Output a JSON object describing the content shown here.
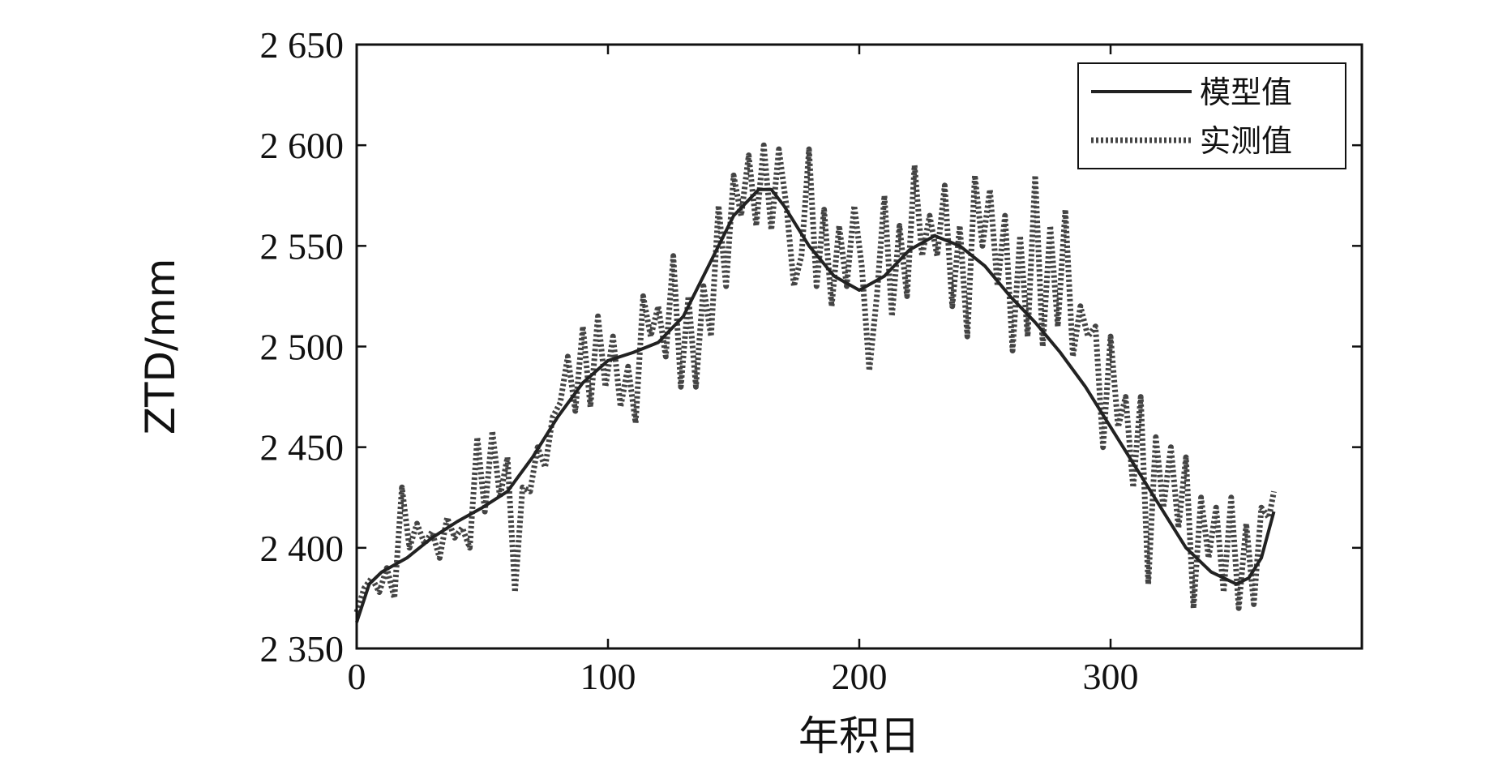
{
  "chart_data": {
    "type": "line",
    "title": "",
    "xlabel": "年积日",
    "ylabel": "ZTD/mm",
    "xlim": [
      0,
      400
    ],
    "ylim": [
      2350,
      2650
    ],
    "x_ticks": [
      0,
      100,
      200,
      300
    ],
    "x_tick_labels": [
      "0",
      "100",
      "200",
      "300"
    ],
    "y_ticks": [
      2350,
      2400,
      2450,
      2500,
      2550,
      2600,
      2650
    ],
    "y_tick_labels": [
      "2 350",
      "2 400",
      "2 450",
      "2 500",
      "2 550",
      "2 600",
      "2 650"
    ],
    "grid": false,
    "legend_position": "top-right",
    "series": [
      {
        "name": "模型值",
        "style": "solid",
        "color": "#222222",
        "x": [
          0,
          5,
          10,
          20,
          30,
          40,
          50,
          60,
          70,
          80,
          90,
          100,
          110,
          120,
          130,
          140,
          150,
          160,
          165,
          170,
          180,
          190,
          200,
          210,
          220,
          230,
          240,
          250,
          260,
          270,
          280,
          290,
          300,
          310,
          320,
          330,
          340,
          350,
          355,
          360,
          365
        ],
        "y": [
          2363,
          2382,
          2388,
          2395,
          2405,
          2413,
          2420,
          2428,
          2445,
          2465,
          2482,
          2493,
          2497,
          2502,
          2515,
          2540,
          2565,
          2578,
          2578,
          2570,
          2550,
          2535,
          2528,
          2535,
          2548,
          2555,
          2550,
          2540,
          2525,
          2512,
          2497,
          2480,
          2460,
          2440,
          2420,
          2400,
          2388,
          2382,
          2385,
          2395,
          2418
        ]
      },
      {
        "name": "实测值",
        "style": "dotted",
        "color": "#444444",
        "x": [
          0,
          3,
          6,
          9,
          12,
          15,
          18,
          21,
          24,
          27,
          30,
          33,
          36,
          39,
          42,
          45,
          48,
          51,
          54,
          57,
          60,
          63,
          66,
          69,
          72,
          75,
          78,
          81,
          84,
          87,
          90,
          93,
          96,
          99,
          102,
          105,
          108,
          111,
          114,
          117,
          120,
          123,
          126,
          129,
          132,
          135,
          138,
          141,
          144,
          147,
          150,
          153,
          156,
          159,
          162,
          165,
          168,
          171,
          174,
          177,
          180,
          183,
          186,
          189,
          192,
          195,
          198,
          201,
          204,
          207,
          210,
          213,
          216,
          219,
          222,
          225,
          228,
          231,
          234,
          237,
          240,
          243,
          246,
          249,
          252,
          255,
          258,
          261,
          264,
          267,
          270,
          273,
          276,
          279,
          282,
          285,
          288,
          291,
          294,
          297,
          300,
          303,
          306,
          309,
          312,
          315,
          318,
          321,
          324,
          327,
          330,
          333,
          336,
          339,
          342,
          345,
          348,
          351,
          354,
          357,
          360,
          363,
          365
        ],
        "y": [
          2368,
          2380,
          2385,
          2378,
          2390,
          2375,
          2430,
          2400,
          2412,
          2402,
          2408,
          2395,
          2415,
          2405,
          2410,
          2400,
          2455,
          2418,
          2458,
          2425,
          2445,
          2378,
          2430,
          2428,
          2450,
          2440,
          2465,
          2472,
          2495,
          2468,
          2510,
          2470,
          2515,
          2480,
          2505,
          2470,
          2490,
          2462,
          2525,
          2505,
          2520,
          2495,
          2545,
          2480,
          2525,
          2480,
          2530,
          2505,
          2570,
          2530,
          2585,
          2565,
          2595,
          2560,
          2600,
          2558,
          2598,
          2570,
          2530,
          2545,
          2598,
          2530,
          2568,
          2520,
          2560,
          2530,
          2570,
          2540,
          2488,
          2525,
          2575,
          2515,
          2560,
          2525,
          2590,
          2545,
          2565,
          2545,
          2580,
          2520,
          2560,
          2505,
          2585,
          2550,
          2578,
          2530,
          2565,
          2498,
          2555,
          2505,
          2585,
          2500,
          2560,
          2510,
          2568,
          2495,
          2520,
          2505,
          2510,
          2450,
          2505,
          2460,
          2475,
          2430,
          2475,
          2382,
          2455,
          2420,
          2450,
          2410,
          2445,
          2370,
          2425,
          2395,
          2420,
          2378,
          2425,
          2370,
          2412,
          2372,
          2420,
          2415,
          2428
        ]
      }
    ]
  }
}
